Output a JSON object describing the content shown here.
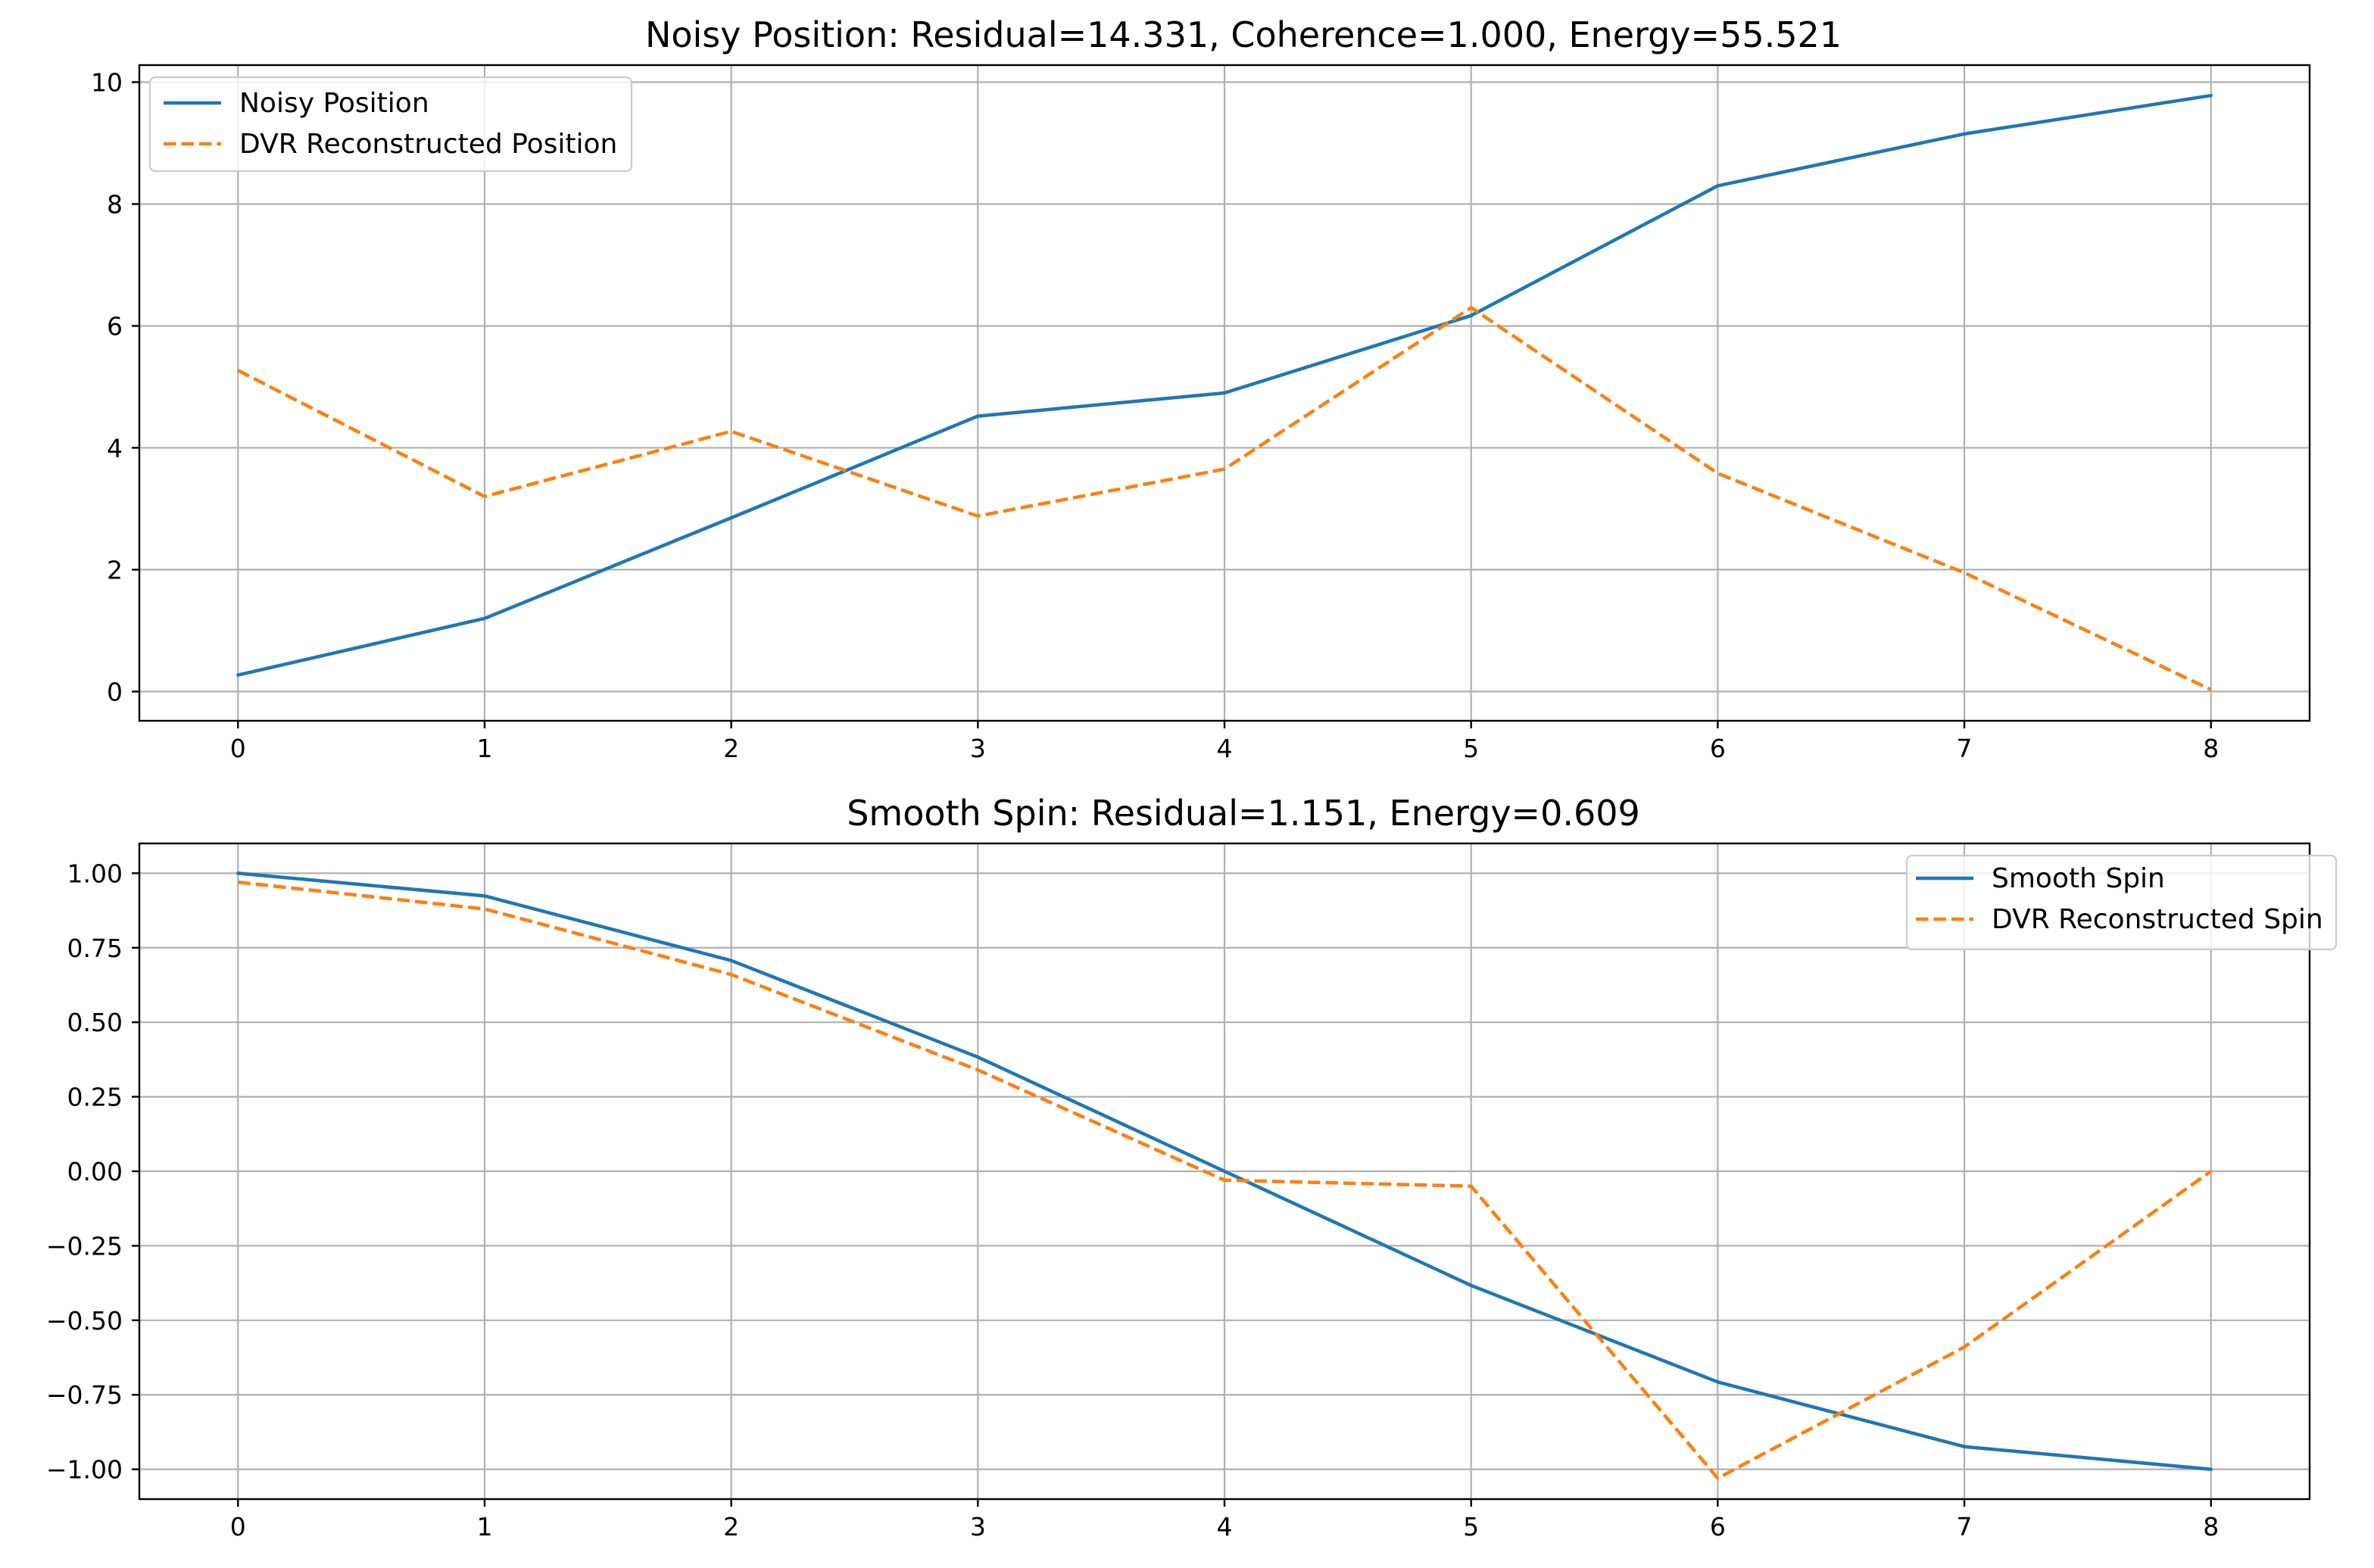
{
  "chart_data": [
    {
      "type": "line",
      "title": "Noisy Position: Residual=14.331, Coherence=1.000, Energy=55.521",
      "xlabel": "",
      "ylabel": "",
      "x": [
        0,
        1,
        2,
        3,
        4,
        5,
        6,
        7,
        8
      ],
      "xlim": [
        -0.4,
        8.4
      ],
      "ylim": [
        -0.48,
        10.28
      ],
      "xticks": [
        0,
        1,
        2,
        3,
        4,
        5,
        6,
        7,
        8
      ],
      "xtick_labels": [
        "0",
        "1",
        "2",
        "3",
        "4",
        "5",
        "6",
        "7",
        "8"
      ],
      "yticks": [
        0,
        2,
        4,
        6,
        8,
        10
      ],
      "ytick_labels": [
        "0",
        "2",
        "4",
        "6",
        "8",
        "10"
      ],
      "grid": true,
      "legend_position": "upper-left",
      "series": [
        {
          "name": "Noisy Position",
          "style": "solid",
          "color": "#1f77b4",
          "values": [
            0.27,
            1.2,
            2.85,
            4.52,
            4.9,
            6.17,
            8.3,
            9.15,
            9.78
          ]
        },
        {
          "name": "DVR Reconstructed Position",
          "style": "dashed",
          "color": "#ff7f0e",
          "values": [
            5.27,
            3.2,
            4.27,
            2.88,
            3.65,
            6.3,
            3.58,
            1.95,
            0.03
          ]
        }
      ]
    },
    {
      "type": "line",
      "title": "Smooth Spin: Residual=1.151, Energy=0.609",
      "xlabel": "",
      "ylabel": "",
      "x": [
        0,
        1,
        2,
        3,
        4,
        5,
        6,
        7,
        8
      ],
      "xlim": [
        -0.4,
        8.4
      ],
      "ylim": [
        -1.1,
        1.1
      ],
      "xticks": [
        0,
        1,
        2,
        3,
        4,
        5,
        6,
        7,
        8
      ],
      "xtick_labels": [
        "0",
        "1",
        "2",
        "3",
        "4",
        "5",
        "6",
        "7",
        "8"
      ],
      "yticks": [
        1.0,
        0.75,
        0.5,
        0.25,
        0.0,
        -0.25,
        -0.5,
        -0.75,
        -1.0
      ],
      "ytick_labels": [
        "1.00",
        "0.75",
        "0.50",
        "0.25",
        "0.00",
        "−0.25",
        "−0.50",
        "−0.75",
        "−1.00"
      ],
      "grid": true,
      "legend_position": "upper-right",
      "series": [
        {
          "name": "Smooth Spin",
          "style": "solid",
          "color": "#1f77b4",
          "values": [
            1.0,
            0.924,
            0.707,
            0.383,
            0.0,
            -0.383,
            -0.707,
            -0.924,
            -1.0
          ]
        },
        {
          "name": "DVR Reconstructed Spin",
          "style": "dashed",
          "color": "#ff7f0e",
          "values": [
            0.97,
            0.88,
            0.66,
            0.34,
            -0.03,
            -0.05,
            -1.03,
            -0.59,
            0.0
          ]
        }
      ]
    }
  ]
}
